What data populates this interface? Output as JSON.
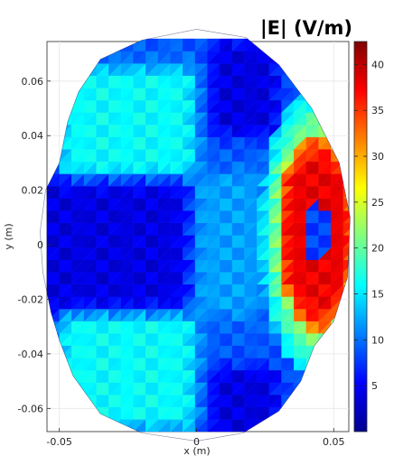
{
  "chart_data": {
    "type": "heatmap",
    "title": "|E| (V/m)",
    "xlabel": "x (m)",
    "ylabel": "y (m)",
    "xlim": [
      -0.0545,
      0.0555
    ],
    "ylim": [
      -0.0685,
      0.0745
    ],
    "x_ticks": [
      -0.05,
      0,
      0.05
    ],
    "x_tick_labels": [
      "-0.05",
      "0",
      "0.05"
    ],
    "y_ticks": [
      -0.06,
      -0.04,
      -0.02,
      0,
      0.02,
      0.04,
      0.06
    ],
    "y_tick_labels": [
      "-0.06",
      "-0.04",
      "-0.02",
      "0",
      "0.02",
      "0.04",
      "0.06"
    ],
    "colormap": "jet",
    "clim": [
      0,
      42.5
    ],
    "colorbar_ticks": [
      5,
      10,
      15,
      20,
      25,
      30,
      35,
      40
    ],
    "colorbar_tick_labels": [
      "5",
      "10",
      "15",
      "20",
      "25",
      "30",
      "35",
      "40"
    ],
    "grid": true,
    "regions": [
      {
        "x": [
          -0.055,
          0.003
        ],
        "y": [
          -0.022,
          0.022
        ],
        "value": 4
      },
      {
        "x": [
          0.003,
          0.018
        ],
        "y": [
          -0.022,
          0.022
        ],
        "value": 12
      },
      {
        "x": [
          -0.045,
          -0.005
        ],
        "y": [
          0.03,
          0.06
        ],
        "value": 16
      },
      {
        "x": [
          -0.045,
          -0.005
        ],
        "y": [
          -0.062,
          -0.03
        ],
        "value": 16
      },
      {
        "x": [
          0.035,
          0.052
        ],
        "y": [
          -0.015,
          0.025
        ],
        "value": 38
      },
      {
        "x": [
          0.01,
          0.025
        ],
        "y": [
          0.045,
          0.07
        ],
        "value": 4
      },
      {
        "x": [
          0.01,
          0.025
        ],
        "y": [
          -0.068,
          -0.05
        ],
        "value": 4
      }
    ]
  }
}
